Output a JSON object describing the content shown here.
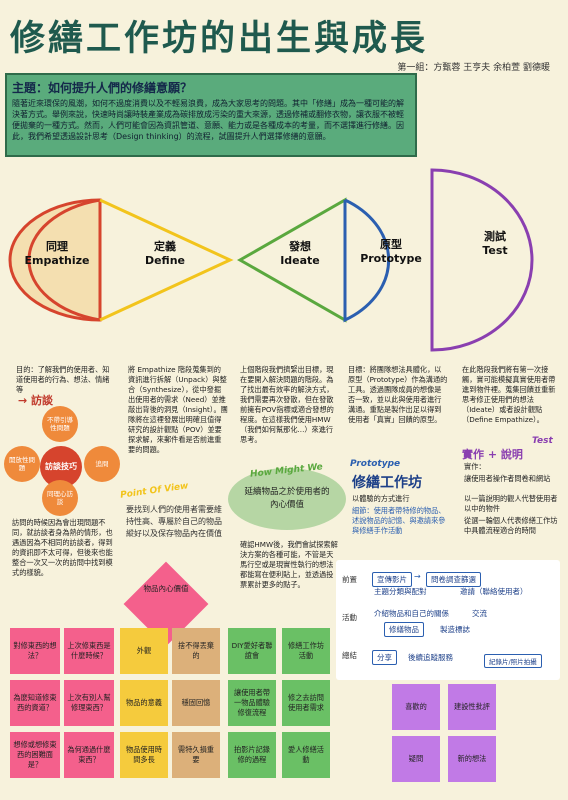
{
  "title": "修繕工作坊的出生與成長",
  "authors": "第一組：方甄蓉 王亨夫 余柏萱 劉德暖",
  "intro": {
    "heading": "主題：如何提升人們的修繕意願？",
    "text": "隨著近來環保的風潮，如何不過度消費以及不輕易浪費，成為大家思考的問題。其中「修繕」成為一種可能的解決著方式。舉例來說，快速時尚讓時裝產業成為碳排放成污染的重大來源，透過修補或翻修衣物，讓衣服不被輕便拋棄的一種方式。然而，人們可能會因為資訊管道、意願、能力或是各種成本的考量，而不選擇進行修繕。因此，我們希望透過設計思考（Design thinking）的流程，試圖提升人們選擇修繕的意願。"
  },
  "stages": [
    {
      "zh": "同理",
      "en": "Empathize",
      "color": "#d6442d"
    },
    {
      "zh": "定義",
      "en": "Define",
      "color": "#f2c41c"
    },
    {
      "zh": "發想",
      "en": "Ideate",
      "color": "#5aa83e"
    },
    {
      "zh": "原型",
      "en": "Prototype",
      "color": "#2b5fb0"
    },
    {
      "zh": "測試",
      "en": "Test",
      "color": "#8a3fb0"
    }
  ],
  "empathize": {
    "goal": "目的：了解我們的使用者、知道使用者的行為、想法、情緒等",
    "method_tag": "→ 訪談",
    "center": "訪談技巧",
    "circles": [
      "不帶引導性問題",
      "開放性問題",
      "追問",
      "同理心訪談"
    ],
    "note": "訪問的時候因為會出現問題不同，就訪談者身為熱的情形，也遇過因為不相同的訪談者，得到的資訊即不太可得，但後來也能整合一次又一次的訪問中找到模式的樣貌。"
  },
  "define": {
    "text": "將 Empathize 階段蒐集到的資訊進行拆解（Unpack）與整合（Synthesize），從中發掘出使用者的需求（Need）並推敲出背後的洞見（Insight）。團隊將在這裡發展出明確且值得研究的設計觀點（POV）並要探求解，來郵件看是否前進重要的問題。",
    "pov_tag": "Point Of View",
    "pov": "要找到人們的使用者需要維持性高、專屬於自己的物品縱好以及保存物品內在價值"
  },
  "ideate": {
    "text": "上個階段我們擠緊出目標，現在要開入解決問題的階段。為了找出最有效率的解決方式，我們需要再次發散，但在發散前擁有POV指標或適合發想的程度。在這樣我們使用HMW（我們如何幫那化...）來進行思考。",
    "hmw_tag": "How Might We",
    "hmw": "延續物品之於使用者的內心價值",
    "next": "確認HMW後，我們會試探索解決方案的各種可能，不管是天馬行空或是現實性執行的想法都能寫在便利貼上，並透過投票累計更多的點子。"
  },
  "prototype": {
    "text": "目標：將團隊想法具體化，以原型（Prototype）作為溝通的工具。透過團隊成員的想像是否一致，並以此與使用者進行溝通。重點是製作出足以得到使用者「真實」回饋的原型。",
    "tag": "Prototype",
    "title": "修繕工作坊",
    "bullets": [
      "以體驗的方式進行",
      "細節：使用者帶特修的物品、述說物品的記憶、與邀請來參與修繕手作活動"
    ],
    "flow_labels": [
      "前置",
      "活動",
      "總結"
    ],
    "flow": {
      "prep": [
        "宣傳影片",
        "問卷調查篩選",
        "主題分類與配對",
        "邀請（聯絡使用者）"
      ],
      "activity": [
        "介紹物品和自己的關係",
        "交流",
        "修繕物品",
        "製造標誌"
      ],
      "summary": [
        "分享",
        "後續追蹤服務"
      ],
      "extra": "紀錄片/照片拍攝"
    }
  },
  "test": {
    "text": "在此階段我們將有第一次接觸，實可能模擬真實使用者帶進到物件裡。蒐集回饋並重新思考修正使用們的想法（Ideate）或者設計觀點（Define Empathize）。",
    "tag": "Test",
    "subtitle": "實作 + 說明",
    "bullets": [
      "實作：",
      "讓使用者操作者問卷和網站",
      "以一篇說明的觀人代替使用者以中的物件",
      "從選一輪個人代表修繕工作坊中具體流程適合的時間"
    ]
  },
  "center_note": "物品內心價值",
  "stickies_pink": [
    "對修東西的想法？",
    "上次修東西是什麼時候？",
    "為麼知道修東西的資道？",
    "上次有別人幫修理東西？",
    "想修或想修東西的困難面是？",
    "為何通過什麼東西？"
  ],
  "stickies_yellow": [
    "外觀",
    "物品的意義",
    "物品使用時間多長"
  ],
  "stickies_tan": [
    "捨不得丟棄的",
    "穩固回憶",
    "需特久損重要"
  ],
  "stickies_green": [
    "DIY愛好者聯誼會",
    "修繕工作坊活動",
    "讓使用者帶一物品體驗修復流程",
    "修之去訪問使用者需求",
    "拍影片記錄修的過程",
    "愛人修繕活動"
  ],
  "stickies_purple": [
    "喜歡的",
    "建設性批評",
    "疑問",
    "新的想法"
  ]
}
